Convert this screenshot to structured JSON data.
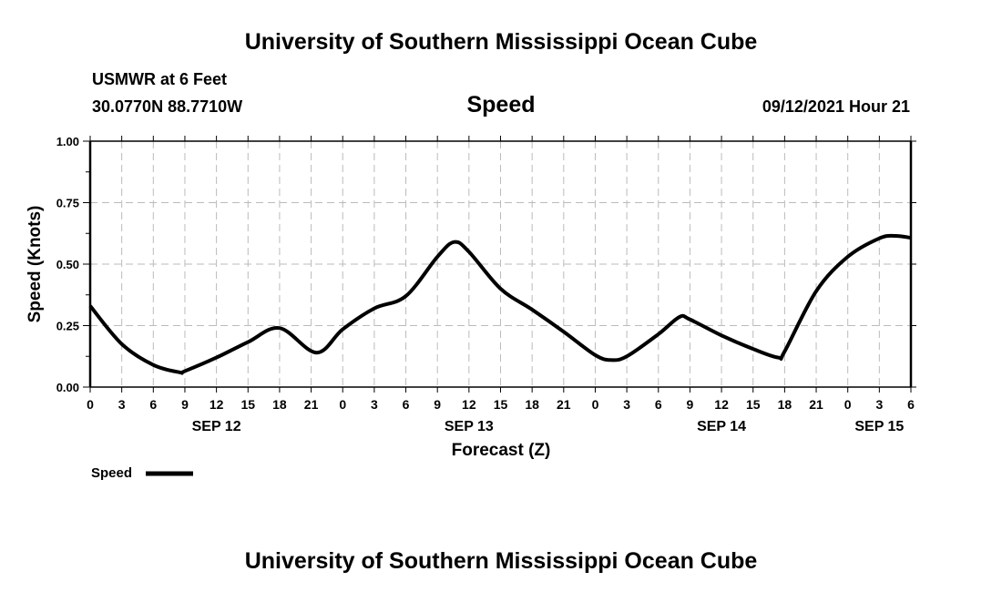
{
  "header": {
    "title_top": "University of Southern Mississippi Ocean Cube",
    "station": "USMWR at 6 Feet",
    "coords": "30.0770N  88.7710W",
    "variable": "Speed",
    "datetime": "09/12/2021 Hour 21",
    "title_bottom": "University of Southern Mississippi Ocean Cube"
  },
  "chart_data": {
    "type": "line",
    "title": "Speed",
    "xlabel": "Forecast (Z)",
    "ylabel": "Speed (Knots)",
    "xlim_hours": [
      0,
      78
    ],
    "ylim": [
      0,
      1
    ],
    "yticks": [
      "0.00",
      "0.25",
      "0.50",
      "0.75",
      "1.00"
    ],
    "ytick_values": [
      0,
      0.25,
      0.5,
      0.75,
      1.0
    ],
    "xtick_labels": [
      "0",
      "3",
      "6",
      "9",
      "12",
      "15",
      "18",
      "21",
      "0",
      "3",
      "6",
      "9",
      "12",
      "15",
      "18",
      "21",
      "0",
      "3",
      "6",
      "9",
      "12",
      "15",
      "18",
      "21",
      "0",
      "3",
      "6"
    ],
    "day_labels": [
      {
        "label": "SEP 12",
        "hour": 12
      },
      {
        "label": "SEP 13",
        "hour": 36
      },
      {
        "label": "SEP 14",
        "hour": 60
      },
      {
        "label": "SEP 15",
        "hour": 75
      }
    ],
    "grid": true,
    "legend": {
      "label": "Speed",
      "placement": "bottom-left"
    },
    "series": [
      {
        "name": "Speed",
        "color": "#000000",
        "x": [
          0,
          3,
          6,
          8.5,
          9,
          12,
          15,
          18,
          21.5,
          24,
          27,
          30,
          33,
          34.6,
          36,
          39,
          42,
          45,
          48,
          49.5,
          51,
          54,
          56,
          57,
          60,
          63,
          65.4,
          66,
          69,
          72,
          75,
          76.5,
          78
        ],
        "values": [
          0.33,
          0.175,
          0.09,
          0.06,
          0.065,
          0.12,
          0.183,
          0.24,
          0.14,
          0.235,
          0.32,
          0.37,
          0.53,
          0.59,
          0.55,
          0.4,
          0.315,
          0.225,
          0.13,
          0.11,
          0.125,
          0.215,
          0.285,
          0.275,
          0.21,
          0.155,
          0.12,
          0.145,
          0.39,
          0.53,
          0.605,
          0.615,
          0.607
        ]
      }
    ]
  }
}
